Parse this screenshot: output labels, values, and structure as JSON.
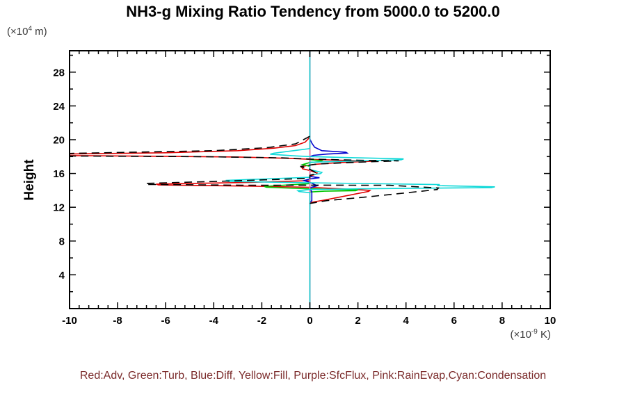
{
  "title": "NH3-g Mixing Ratio Tendency from 5000.0 to 5200.0",
  "y_unit": {
    "prefix": "(×10",
    "sup": "4",
    "suffix": " m)"
  },
  "x_unit": {
    "prefix": "(×10",
    "sup": "-9",
    "suffix": " K)"
  },
  "legend_text": "Red:Adv, Green:Turb, Blue:Diff, Yellow:Fill, Purple:SfcFlux, Pink:RainEvap,Cyan:Condensation",
  "chart_data": {
    "type": "line",
    "title": "NH3-g Mixing Ratio Tendency from 5000.0 to 5200.0",
    "xlabel_unit": "(×10^-9 K)",
    "ylabel": "Height",
    "ylabel_unit": "(×10^4 m)",
    "xlim": [
      -10,
      10
    ],
    "ylim": [
      0,
      30.5
    ],
    "x_ticks": [
      -10,
      -8,
      -6,
      -4,
      -2,
      0,
      2,
      4,
      6,
      8,
      10
    ],
    "y_ticks": [
      4,
      8,
      12,
      16,
      20,
      24,
      28
    ],
    "x_minor_step": 0.4,
    "y_minor_step": 2,
    "grid": false,
    "zero_line": {
      "x": 0,
      "color": "#7deeee"
    },
    "legend_position": "bottom",
    "axis_note": "x = tendency (10^-9 K), y = height (10^4 m); vertical cyan line at x=0",
    "series": [
      {
        "name": "Adv",
        "color": "#e00000",
        "dash": "none",
        "points": [
          [
            0,
            30.5
          ],
          [
            0,
            20.3
          ],
          [
            -0.2,
            19.7
          ],
          [
            -0.6,
            19.3
          ],
          [
            -1.5,
            19.0
          ],
          [
            -3.0,
            18.7
          ],
          [
            -6.0,
            18.45
          ],
          [
            -10.4,
            18.3
          ],
          [
            -10.4,
            18.12
          ],
          [
            -6.0,
            18.03
          ],
          [
            -3.0,
            17.95
          ],
          [
            -1.0,
            17.8
          ],
          [
            0,
            17.68
          ],
          [
            1.5,
            17.55
          ],
          [
            2.8,
            17.47
          ],
          [
            1.2,
            17.28
          ],
          [
            0.3,
            17.1
          ],
          [
            0,
            17.0
          ],
          [
            -0.35,
            16.8
          ],
          [
            -0.3,
            16.55
          ],
          [
            0,
            16.35
          ],
          [
            0.3,
            16.05
          ],
          [
            0.25,
            15.9
          ],
          [
            0,
            15.7
          ],
          [
            0,
            15.15
          ],
          [
            -2.5,
            14.95
          ],
          [
            -6.4,
            14.74
          ],
          [
            -6.3,
            14.64
          ],
          [
            -2.5,
            14.5
          ],
          [
            0,
            14.36
          ],
          [
            1.2,
            14.2
          ],
          [
            2.5,
            14.0
          ],
          [
            2.45,
            13.88
          ],
          [
            1.5,
            13.35
          ],
          [
            0.6,
            12.85
          ],
          [
            0,
            12.55
          ],
          [
            0,
            0
          ]
        ]
      },
      {
        "name": "Turb",
        "color": "#00c400",
        "dash": "none",
        "points": [
          [
            0,
            30.5
          ],
          [
            0,
            17.65
          ],
          [
            0.5,
            17.5
          ],
          [
            0.45,
            17.4
          ],
          [
            0,
            17.3
          ],
          [
            -0.3,
            17.05
          ],
          [
            0,
            16.85
          ],
          [
            0,
            14.8
          ],
          [
            -1.9,
            14.47
          ],
          [
            -1.8,
            14.36
          ],
          [
            0,
            14.18
          ],
          [
            2.0,
            14.06
          ],
          [
            1.9,
            13.96
          ],
          [
            0.6,
            13.9
          ],
          [
            0,
            13.8
          ],
          [
            0,
            0
          ]
        ]
      },
      {
        "name": "Diff",
        "color": "#0000cd",
        "dash": "none",
        "points": [
          [
            0,
            30.5
          ],
          [
            0,
            20.1
          ],
          [
            0.08,
            19.6
          ],
          [
            0.2,
            19.1
          ],
          [
            0.5,
            18.7
          ],
          [
            1.5,
            18.52
          ],
          [
            1.55,
            18.42
          ],
          [
            0.7,
            18.3
          ],
          [
            0.15,
            18.15
          ],
          [
            0,
            18.0
          ],
          [
            0,
            15.65
          ],
          [
            0.4,
            15.5
          ],
          [
            0,
            15.35
          ],
          [
            -0.25,
            15.15
          ],
          [
            0,
            14.95
          ],
          [
            0.3,
            14.55
          ],
          [
            0,
            14.3
          ],
          [
            0.08,
            13.8
          ],
          [
            0.08,
            12.8
          ],
          [
            0,
            12.55
          ],
          [
            0,
            0
          ]
        ]
      },
      {
        "name": "Fill",
        "color": "#f0d000",
        "dash": "none",
        "points": [
          [
            0,
            30.5
          ],
          [
            0,
            0
          ]
        ]
      },
      {
        "name": "SfcFlux",
        "color": "#9932cc",
        "dash": "none",
        "points": [
          [
            0,
            30.5
          ],
          [
            0,
            0
          ]
        ]
      },
      {
        "name": "RainEvap",
        "color": "#ff7bac",
        "dash": "none",
        "points": [
          [
            0,
            30.5
          ],
          [
            0,
            0
          ]
        ]
      },
      {
        "name": "Condensation",
        "color": "#0fd8d8",
        "dash": "none",
        "points": [
          [
            0,
            30.5
          ],
          [
            0,
            18.95
          ],
          [
            -1.5,
            18.4
          ],
          [
            -1.65,
            18.28
          ],
          [
            -0.6,
            18.08
          ],
          [
            0,
            18.0
          ],
          [
            2.0,
            17.85
          ],
          [
            3.9,
            17.73
          ],
          [
            3.8,
            17.62
          ],
          [
            1.2,
            17.42
          ],
          [
            0,
            17.33
          ],
          [
            0,
            16.45
          ],
          [
            0.5,
            16.12
          ],
          [
            0.45,
            15.98
          ],
          [
            0,
            15.82
          ],
          [
            0,
            15.55
          ],
          [
            -3.5,
            15.18
          ],
          [
            -3.4,
            15.06
          ],
          [
            0,
            14.9
          ],
          [
            5.4,
            14.68
          ],
          [
            5.3,
            14.56
          ],
          [
            7.7,
            14.42
          ],
          [
            7.55,
            14.33
          ],
          [
            2.0,
            14.18
          ],
          [
            0,
            14.1
          ],
          [
            -0.5,
            13.96
          ],
          [
            -0.45,
            13.86
          ],
          [
            0,
            13.72
          ],
          [
            0,
            0
          ]
        ]
      },
      {
        "name": "total-black-dashed-unlabeled",
        "color": "#000000",
        "dash": "11 7",
        "points": [
          [
            0,
            20.4
          ],
          [
            -0.6,
            19.5
          ],
          [
            -1.8,
            19.05
          ],
          [
            -4.0,
            18.7
          ],
          [
            -10.4,
            18.35
          ],
          [
            -10.4,
            18.07
          ],
          [
            -4.5,
            17.99
          ],
          [
            -1.2,
            17.85
          ],
          [
            0,
            17.7
          ],
          [
            2.0,
            17.57
          ],
          [
            3.7,
            17.5
          ],
          [
            2.0,
            17.33
          ],
          [
            0.3,
            17.12
          ],
          [
            -0.4,
            16.82
          ],
          [
            0,
            16.5
          ],
          [
            0.3,
            16.02
          ],
          [
            0,
            15.78
          ],
          [
            0,
            15.42
          ],
          [
            -3.2,
            15.12
          ],
          [
            -6.85,
            14.82
          ],
          [
            -6.75,
            14.7
          ],
          [
            -2.5,
            14.6
          ],
          [
            0,
            14.62
          ],
          [
            3.3,
            14.6
          ],
          [
            5.35,
            14.28
          ],
          [
            5.3,
            14.1
          ],
          [
            4.0,
            13.7
          ],
          [
            2.3,
            13.2
          ],
          [
            0.7,
            12.78
          ],
          [
            0,
            12.45
          ]
        ]
      }
    ]
  }
}
